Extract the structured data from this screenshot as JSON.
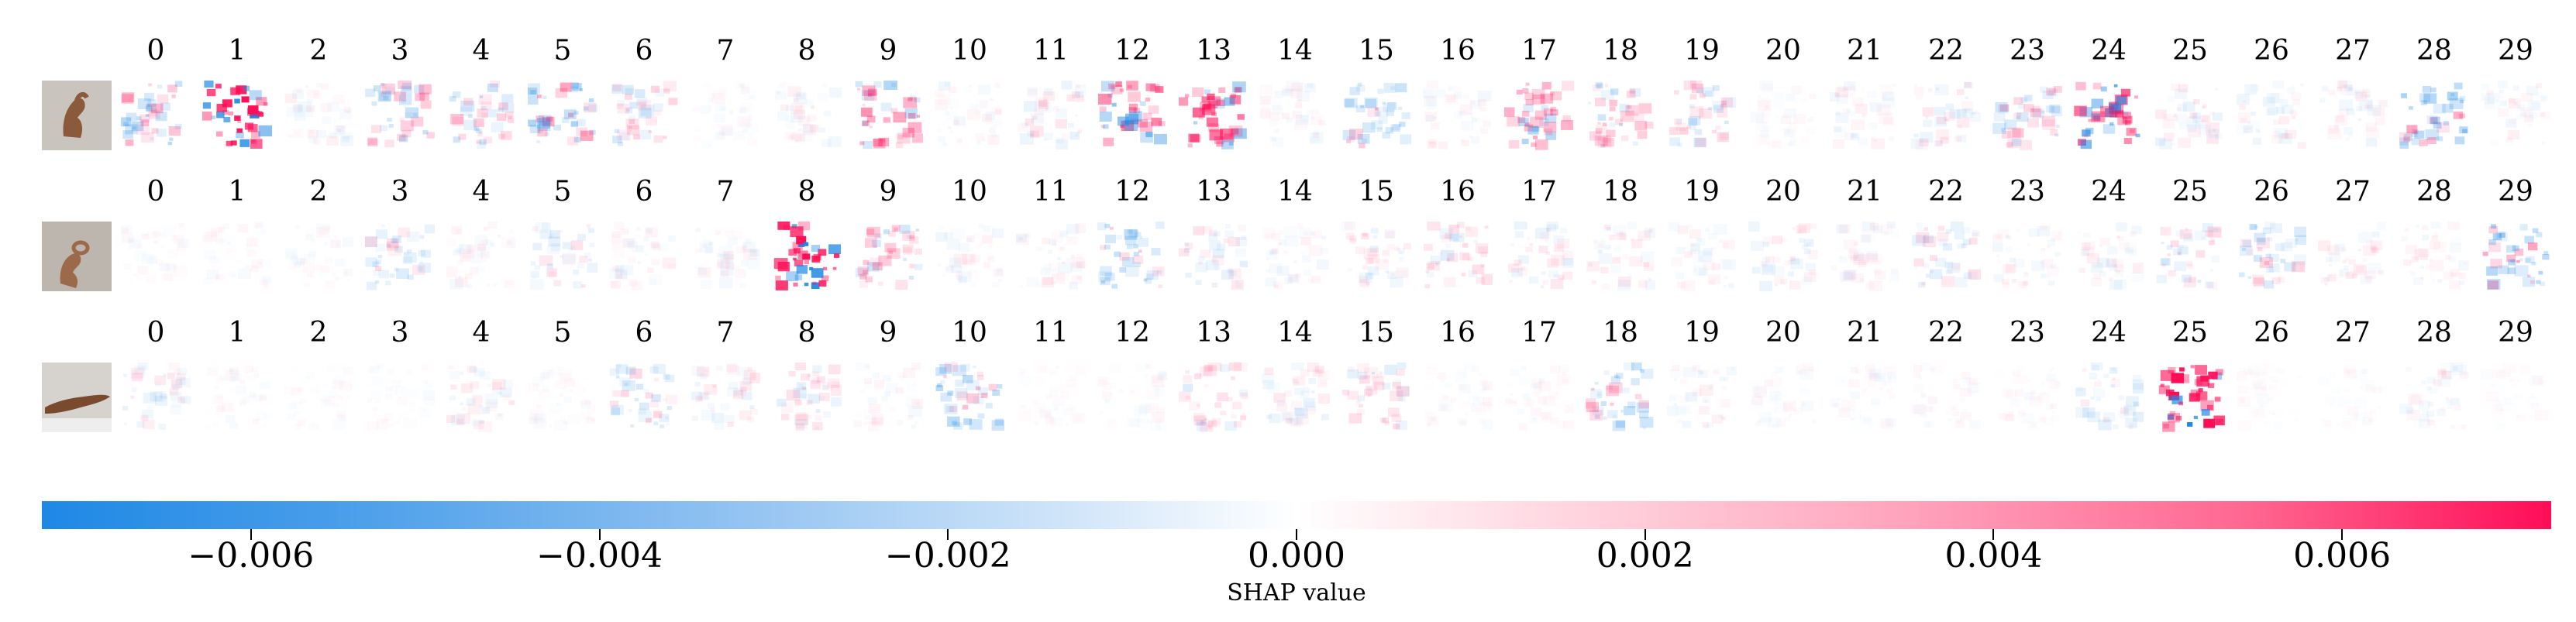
{
  "chart_data": {
    "type": "heatmap",
    "description_kind": "image-grid",
    "class_labels": [
      "0",
      "1",
      "2",
      "3",
      "4",
      "5",
      "6",
      "7",
      "8",
      "9",
      "10",
      "11",
      "12",
      "13",
      "14",
      "15",
      "16",
      "17",
      "18",
      "19",
      "20",
      "21",
      "22",
      "23",
      "24",
      "25",
      "26",
      "27",
      "28",
      "29"
    ],
    "rows": [
      {
        "input_image": "hand-sign-photo",
        "intensity": [
          0.25,
          0.85,
          0.05,
          0.2,
          0.2,
          0.3,
          0.15,
          0.03,
          0.05,
          0.3,
          0.05,
          0.08,
          0.45,
          0.55,
          0.05,
          0.2,
          0.05,
          0.3,
          0.2,
          0.15,
          0.03,
          0.05,
          0.08,
          0.2,
          0.6,
          0.08,
          0.06,
          0.06,
          0.3,
          0.05
        ],
        "sign": [
          0,
          1,
          0,
          0,
          0,
          -1,
          0,
          0,
          0,
          1,
          0,
          0,
          1,
          1,
          0,
          -1,
          0,
          1,
          1,
          0,
          0,
          0,
          0,
          0,
          1,
          0,
          0,
          0,
          -1,
          0
        ]
      },
      {
        "input_image": "hand-sign-photo",
        "intensity": [
          0.03,
          0.03,
          0.03,
          0.12,
          0.05,
          0.1,
          0.05,
          0.05,
          0.8,
          0.2,
          0.05,
          0.05,
          0.22,
          0.1,
          0.05,
          0.08,
          0.12,
          0.08,
          0.07,
          0.05,
          0.07,
          0.05,
          0.1,
          0.06,
          0.06,
          0.12,
          0.15,
          0.06,
          0.05,
          0.3
        ],
        "sign": [
          0,
          0,
          0,
          -1,
          0,
          -1,
          0,
          0,
          1,
          1,
          0,
          0,
          -1,
          0,
          0,
          0,
          1,
          0,
          0,
          0,
          0,
          0,
          -1,
          0,
          0,
          0,
          -1,
          0,
          0,
          -1
        ]
      },
      {
        "input_image": "hand-sign-photo",
        "intensity": [
          0.08,
          0.03,
          0.02,
          0.02,
          0.08,
          0.03,
          0.15,
          0.08,
          0.1,
          0.04,
          0.25,
          0.02,
          0.03,
          0.12,
          0.08,
          0.12,
          0.03,
          0.03,
          0.2,
          0.05,
          0.03,
          0.03,
          0.03,
          0.03,
          0.1,
          0.85,
          0.02,
          0.02,
          0.05,
          0.02
        ],
        "sign": [
          -1,
          0,
          0,
          0,
          0,
          0,
          -1,
          0,
          1,
          0,
          -1,
          0,
          0,
          1,
          0,
          1,
          0,
          0,
          -1,
          0,
          0,
          0,
          0,
          0,
          -1,
          1,
          0,
          0,
          0,
          0
        ]
      }
    ],
    "colorbar": {
      "label": "SHAP value",
      "range": [
        -0.0072,
        0.0072
      ],
      "ticks": [
        -0.006,
        -0.004,
        -0.002,
        0.0,
        0.002,
        0.004,
        0.006
      ],
      "tick_labels": [
        "−0.006",
        "−0.004",
        "−0.002",
        "0.000",
        "0.002",
        "0.004",
        "0.006"
      ],
      "negative_color": "#1e88e5",
      "positive_color": "#ff0d57"
    }
  }
}
